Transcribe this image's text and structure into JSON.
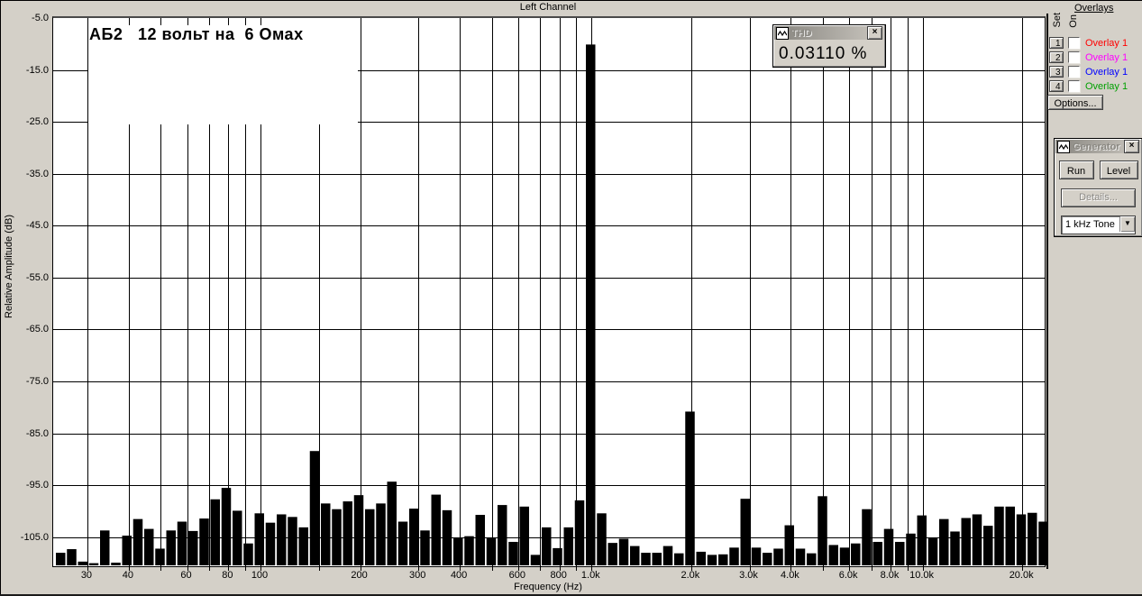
{
  "header": {
    "title": "Left Channel"
  },
  "thd": {
    "title": "THD",
    "value": "0.03110 %",
    "close_glyph": "×"
  },
  "generator": {
    "title": "Generator",
    "close_glyph": "×",
    "run_label": "Run",
    "level_label": "Level",
    "details_label": "Details...",
    "signal_value": "1 kHz Tone",
    "arrow_glyph": "▼"
  },
  "overlays": {
    "heading": "Overlays",
    "set_col": "Set",
    "on_col": "On",
    "options_label": "Options...",
    "rows": [
      {
        "num": "1",
        "label": "Overlay 1",
        "color": "#ff0000",
        "checked": false
      },
      {
        "num": "2",
        "label": "Overlay 1",
        "color": "#ff00ff",
        "checked": false
      },
      {
        "num": "3",
        "label": "Overlay 1",
        "color": "#0000ff",
        "checked": false
      },
      {
        "num": "4",
        "label": "Overlay 1",
        "color": "#00a000",
        "checked": false
      }
    ]
  },
  "chart_data": {
    "type": "bar",
    "title": "Left Channel",
    "annotation": "АБ2   12 вольт на  6 Омах",
    "xlabel": "Frequency (Hz)",
    "ylabel": "Relative Amplitude (dB)",
    "x_scale": "log",
    "xlim_hz": [
      23.5,
      23500
    ],
    "ylim_db": [
      -110,
      -5
    ],
    "grid": true,
    "bar_color": "#000000",
    "grid_color": "#000000",
    "thd_percent": 0.0311,
    "fundamental_hz": 1000,
    "fundamental_db": -10.1,
    "harmonics_db": {
      "2k": -80.8,
      "3k": -97.6,
      "4k": -102.7,
      "5k": -97.1,
      "7k": -99.6,
      "8k": -103.4,
      "10k": -100.8
    },
    "y_tick_labels": [
      "-5.0",
      "-15.0",
      "-25.0",
      "-35.0",
      "-45.0",
      "-55.0",
      "-65.0",
      "-75.0",
      "-85.0",
      "-95.0",
      "-105.0"
    ],
    "x_tick_labels": [
      {
        "f": 30,
        "label": "30"
      },
      {
        "f": 40,
        "label": "40"
      },
      {
        "f": 60,
        "label": "60"
      },
      {
        "f": 80,
        "label": "80"
      },
      {
        "f": 100,
        "label": "100"
      },
      {
        "f": 200,
        "label": "200"
      },
      {
        "f": 300,
        "label": "300"
      },
      {
        "f": 400,
        "label": "400"
      },
      {
        "f": 600,
        "label": "600"
      },
      {
        "f": 800,
        "label": "800"
      },
      {
        "f": 1000,
        "label": "1.0k"
      },
      {
        "f": 2000,
        "label": "2.0k"
      },
      {
        "f": 3000,
        "label": "3.0k"
      },
      {
        "f": 4000,
        "label": "4.0k"
      },
      {
        "f": 6000,
        "label": "6.0k"
      },
      {
        "f": 8000,
        "label": "8.0k"
      },
      {
        "f": 10000,
        "label": "10.0k"
      },
      {
        "f": 20000,
        "label": "20.0k"
      }
    ],
    "h_grid_db": [
      -15,
      -25,
      -35,
      -45,
      -55,
      -65,
      -75,
      -85,
      -95,
      -105
    ],
    "v_grid_full": [
      30,
      200,
      300,
      400,
      500,
      600,
      700,
      800,
      900,
      1000,
      2000,
      3000,
      4000,
      5000,
      6000,
      7000,
      8000,
      9000,
      10000,
      20000
    ],
    "v_grid_clipped": [
      40,
      50,
      60,
      70,
      80,
      90,
      100,
      150
    ],
    "v_grid_stubs": [
      40,
      50,
      60,
      70,
      80,
      90,
      100
    ],
    "frequencies_hz": [
      25,
      27,
      29,
      31,
      34,
      37,
      40,
      43,
      46,
      50,
      54,
      58,
      63,
      68,
      73,
      79,
      85,
      92,
      99,
      107,
      115,
      124,
      134,
      145,
      156,
      169,
      182,
      197,
      212,
      229,
      247,
      267,
      288,
      311,
      336,
      363,
      391,
      423,
      456,
      492,
      531,
      574,
      619,
      669,
      722,
      779,
      841,
      908,
      980,
      1058,
      1142,
      1233,
      1331,
      1437,
      1551,
      1674,
      1807,
      1951,
      2106,
      2273,
      2454,
      2649,
      2859,
      3086,
      3332,
      3596,
      3882,
      4190,
      4523,
      4882,
      5270,
      5689,
      6141,
      6629,
      7156,
      7724,
      8337,
      9000,
      9714,
      10486,
      11319,
      12218,
      13189,
      14237,
      15368,
      16589,
      17907,
      19330,
      20866,
      22524
    ],
    "levels_db": [
      -108,
      -107.3,
      -109.7,
      -110,
      -103.7,
      -109.9,
      -104.7,
      -101.5,
      -103.4,
      -107.2,
      -103.7,
      -102,
      -103.8,
      -101.4,
      -97.7,
      -95.5,
      -99.9,
      -106.2,
      -100.4,
      -102.2,
      -100.6,
      -101.1,
      -103.1,
      -88.4,
      -98.5,
      -99.6,
      -98.1,
      -96.9,
      -99.6,
      -98.5,
      -94.3,
      -102,
      -99.5,
      -103.7,
      -96.8,
      -99.8,
      -105.1,
      -104.8,
      -100.7,
      -105.1,
      -98.8,
      -105.9,
      -99.1,
      -108.4,
      -103.1,
      -107.1,
      -103.1,
      -97.9,
      -10.1,
      -100.4,
      -106.1,
      -105.3,
      -106.7,
      -108,
      -108,
      -106.7,
      -108.1,
      -80.8,
      -107.8,
      -108.4,
      -108.3,
      -107,
      -97.6,
      -107,
      -108,
      -107.2,
      -102.7,
      -107.2,
      -108.1,
      -97.1,
      -106.5,
      -107,
      -106.2,
      -99.6,
      -105.9,
      -103.4,
      -105.9,
      -104.3,
      -100.8,
      -105.2,
      -101.5,
      -103.9,
      -101.3,
      -100.6,
      -102.8,
      -99.1,
      -99.1,
      -100.6,
      -100.3,
      -102
    ]
  }
}
